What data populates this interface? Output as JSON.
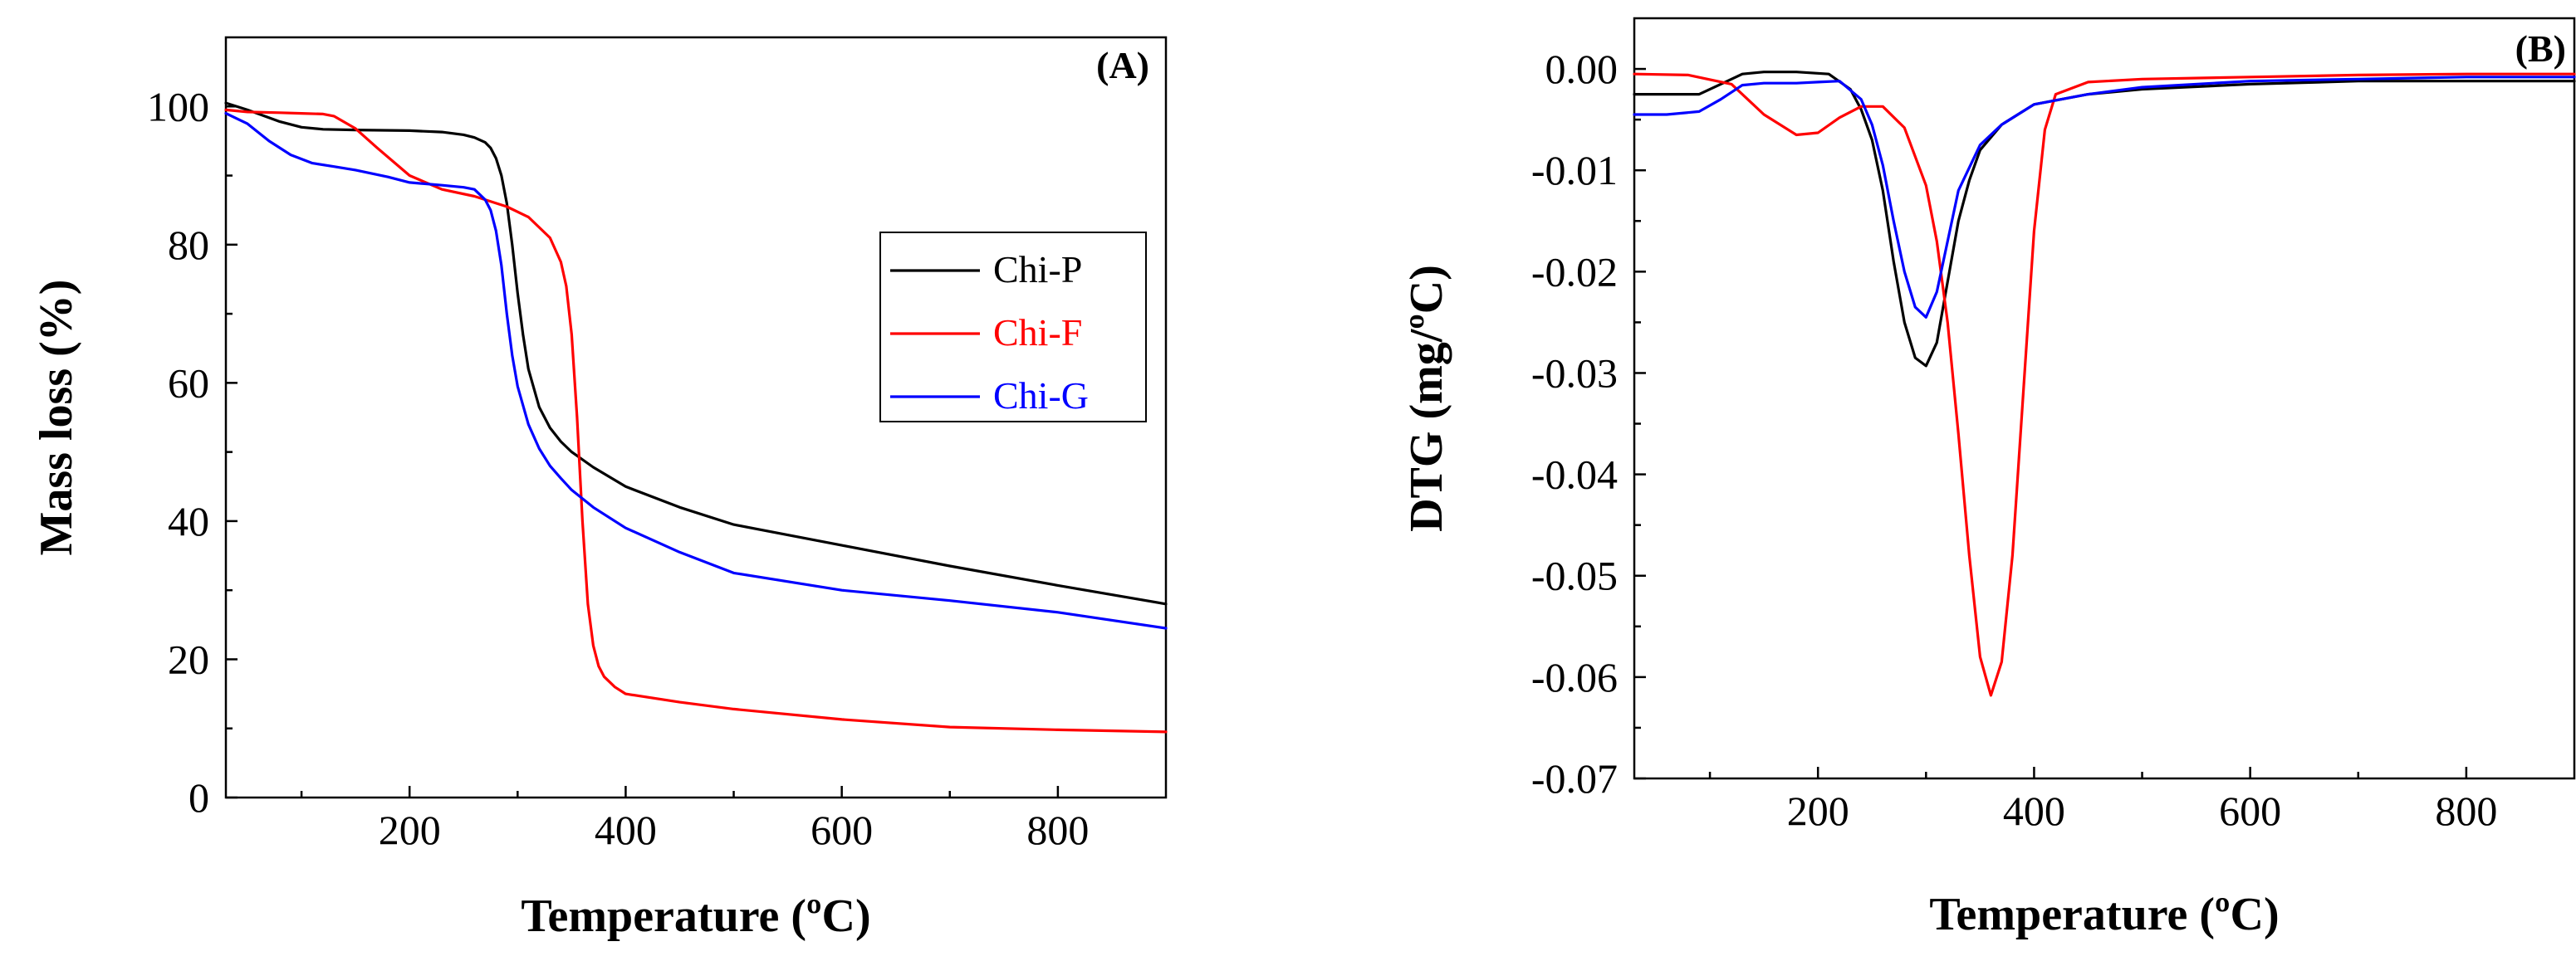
{
  "chart_data": [
    {
      "type": "line",
      "panel_label": "(A)",
      "xlabel": "Temperature (ºC)",
      "ylabel": "Mass loss (%)",
      "xlim": [
        30,
        900
      ],
      "ylim": [
        0,
        110
      ],
      "xticks": [
        200,
        400,
        600,
        800
      ],
      "yticks": [
        0,
        20,
        40,
        60,
        80,
        100
      ],
      "legend_position": "right",
      "grid": false,
      "series": [
        {
          "name": "Chi-P",
          "color": "#000000",
          "x": [
            30,
            50,
            80,
            100,
            120,
            150,
            200,
            230,
            250,
            260,
            270,
            275,
            280,
            285,
            290,
            295,
            300,
            305,
            310,
            320,
            330,
            340,
            350,
            370,
            400,
            450,
            500,
            600,
            700,
            800,
            900
          ],
          "y": [
            100.5,
            99.5,
            97.8,
            97.0,
            96.7,
            96.6,
            96.5,
            96.3,
            95.9,
            95.5,
            94.8,
            94.0,
            92.5,
            90.0,
            86.0,
            80.0,
            73.0,
            67.0,
            62.0,
            56.5,
            53.5,
            51.5,
            50.0,
            47.8,
            45.0,
            42.0,
            39.5,
            36.5,
            33.5,
            30.7,
            28.0
          ]
        },
        {
          "name": "Chi-F",
          "color": "#ff0000",
          "x": [
            30,
            50,
            80,
            100,
            120,
            130,
            150,
            170,
            200,
            230,
            260,
            290,
            310,
            330,
            340,
            345,
            350,
            355,
            360,
            365,
            370,
            375,
            380,
            390,
            400,
            450,
            500,
            600,
            700,
            800,
            900
          ],
          "y": [
            99.5,
            99.2,
            99.1,
            99.0,
            98.9,
            98.6,
            96.8,
            94.0,
            90.0,
            88.0,
            87.0,
            85.5,
            84.0,
            81.0,
            77.5,
            74.0,
            67.0,
            55.0,
            40.0,
            28.0,
            22.0,
            19.0,
            17.5,
            16.0,
            15.0,
            13.8,
            12.8,
            11.3,
            10.2,
            9.8,
            9.5
          ]
        },
        {
          "name": "Chi-G",
          "color": "#0000ff",
          "x": [
            30,
            50,
            70,
            90,
            110,
            130,
            150,
            180,
            200,
            230,
            250,
            260,
            270,
            275,
            280,
            285,
            290,
            295,
            300,
            310,
            320,
            330,
            340,
            350,
            370,
            400,
            450,
            500,
            600,
            700,
            800,
            900
          ],
          "y": [
            99.0,
            97.5,
            95.0,
            93.0,
            91.8,
            91.3,
            90.8,
            89.8,
            89.0,
            88.6,
            88.3,
            88.0,
            86.5,
            85.0,
            82.0,
            77.0,
            70.0,
            64.0,
            59.5,
            54.0,
            50.5,
            48.0,
            46.2,
            44.5,
            42.0,
            39.0,
            35.5,
            32.5,
            30.0,
            28.5,
            26.8,
            24.5
          ]
        }
      ]
    },
    {
      "type": "line",
      "panel_label": "(B)",
      "xlabel": "Temperature (ºC)",
      "ylabel": "DTG (mg/ºC)",
      "xlim": [
        30,
        900
      ],
      "ylim": [
        -0.07,
        0.005
      ],
      "xticks": [
        200,
        400,
        600,
        800
      ],
      "yticks": [
        0.0,
        -0.01,
        -0.02,
        -0.03,
        -0.04,
        -0.05,
        -0.06,
        -0.07
      ],
      "ytick_labels": [
        "0.00",
        "-0.01",
        "-0.02",
        "-0.03",
        "-0.04",
        "-0.05",
        "-0.06",
        "-0.07"
      ],
      "grid": false,
      "series": [
        {
          "name": "Chi-P",
          "color": "#000000",
          "x": [
            30,
            60,
            90,
            110,
            130,
            150,
            180,
            210,
            230,
            240,
            250,
            260,
            270,
            280,
            290,
            300,
            310,
            320,
            330,
            340,
            350,
            370,
            400,
            450,
            500,
            600,
            700,
            800,
            900
          ],
          "y": [
            -0.0025,
            -0.0025,
            -0.0025,
            -0.0015,
            -0.0005,
            -0.0003,
            -0.0003,
            -0.0005,
            -0.002,
            -0.004,
            -0.007,
            -0.012,
            -0.019,
            -0.025,
            -0.0285,
            -0.0293,
            -0.027,
            -0.021,
            -0.015,
            -0.011,
            -0.008,
            -0.0055,
            -0.0035,
            -0.0025,
            -0.002,
            -0.0015,
            -0.0012,
            -0.0012,
            -0.0012
          ]
        },
        {
          "name": "Chi-F",
          "color": "#ff0000",
          "x": [
            30,
            80,
            120,
            150,
            180,
            200,
            220,
            240,
            260,
            280,
            300,
            310,
            320,
            330,
            340,
            350,
            360,
            370,
            380,
            390,
            400,
            410,
            420,
            450,
            500,
            600,
            700,
            800,
            900
          ],
          "y": [
            -0.0005,
            -0.0006,
            -0.0015,
            -0.0045,
            -0.0065,
            -0.0063,
            -0.0048,
            -0.0037,
            -0.0037,
            -0.0058,
            -0.0115,
            -0.017,
            -0.025,
            -0.036,
            -0.048,
            -0.058,
            -0.0618,
            -0.0585,
            -0.048,
            -0.032,
            -0.016,
            -0.006,
            -0.0025,
            -0.0013,
            -0.001,
            -0.0008,
            -0.0006,
            -0.0005,
            -0.0005
          ]
        },
        {
          "name": "Chi-G",
          "color": "#0000ff",
          "x": [
            30,
            60,
            90,
            110,
            130,
            150,
            180,
            200,
            220,
            240,
            250,
            260,
            270,
            280,
            290,
            300,
            310,
            320,
            330,
            350,
            370,
            400,
            450,
            500,
            600,
            700,
            800,
            900
          ],
          "y": [
            -0.0045,
            -0.0045,
            -0.0042,
            -0.003,
            -0.0016,
            -0.0014,
            -0.0014,
            -0.0013,
            -0.0012,
            -0.003,
            -0.0055,
            -0.0095,
            -0.015,
            -0.02,
            -0.0235,
            -0.0245,
            -0.022,
            -0.017,
            -0.012,
            -0.0075,
            -0.0055,
            -0.0035,
            -0.0025,
            -0.0018,
            -0.0012,
            -0.001,
            -0.0008,
            -0.0008
          ]
        }
      ]
    }
  ]
}
